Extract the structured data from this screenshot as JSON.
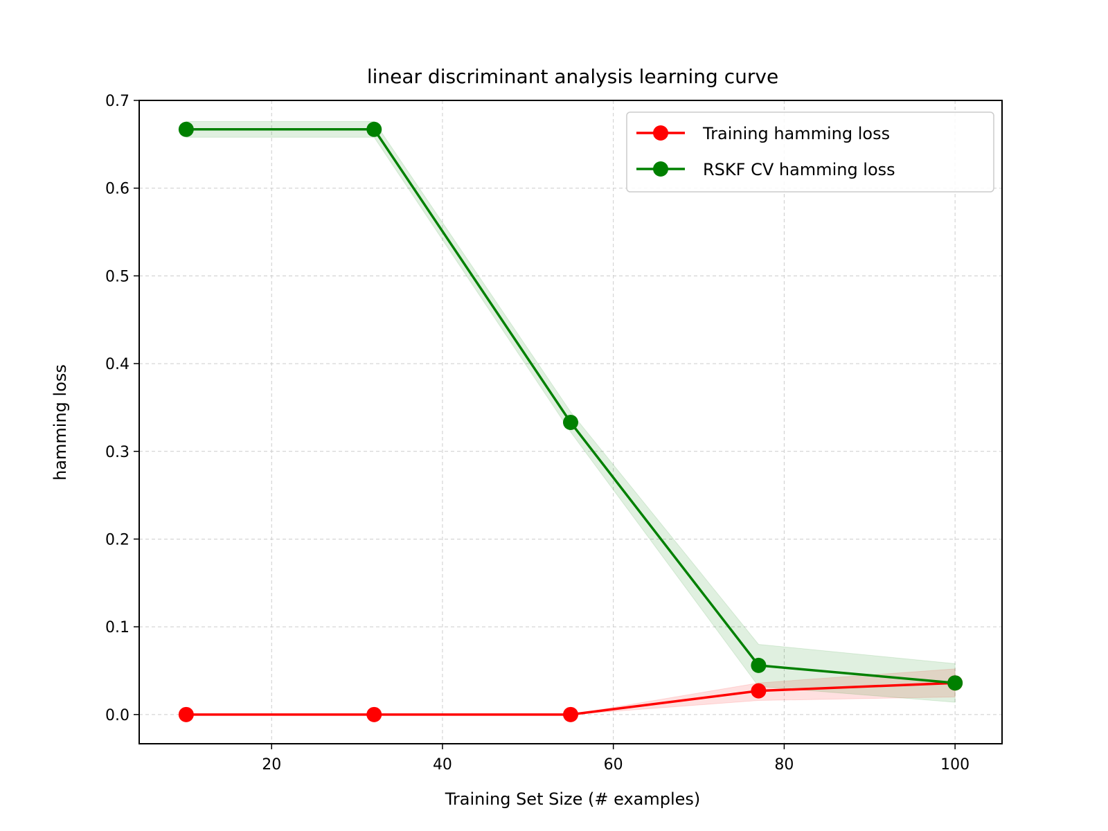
{
  "chart_data": {
    "type": "line",
    "title": "linear discriminant analysis learning curve",
    "xlabel": "Training Set Size (# examples)",
    "ylabel": "hamming loss",
    "xlim": [
      4.5,
      105.5
    ],
    "ylim": [
      -0.0333,
      0.7
    ],
    "xticks": [
      20,
      40,
      60,
      80,
      100
    ],
    "xtick_labels": [
      "20",
      "40",
      "60",
      "80",
      "100"
    ],
    "yticks": [
      0.0,
      0.1,
      0.2,
      0.3,
      0.4,
      0.5,
      0.6,
      0.7
    ],
    "ytick_labels": [
      "0.0",
      "0.1",
      "0.2",
      "0.3",
      "0.4",
      "0.5",
      "0.6",
      "0.7"
    ],
    "grid": true,
    "legend_position": "top-right",
    "x": [
      10,
      32,
      55,
      77,
      100
    ],
    "series": [
      {
        "name": "Training hamming loss",
        "color": "#ff0000",
        "values": [
          0.0,
          0.0,
          0.0,
          0.027,
          0.036
        ],
        "band_lower": [
          0.0,
          0.0,
          0.0,
          0.016,
          0.02
        ],
        "band_upper": [
          0.0,
          0.0,
          0.0,
          0.036,
          0.052
        ]
      },
      {
        "name": "RSKF CV hamming loss",
        "color": "#008000",
        "values": [
          0.667,
          0.667,
          0.333,
          0.056,
          0.036
        ],
        "band_lower": [
          0.658,
          0.658,
          0.322,
          0.032,
          0.014
        ],
        "band_upper": [
          0.676,
          0.676,
          0.345,
          0.08,
          0.058
        ]
      }
    ]
  }
}
